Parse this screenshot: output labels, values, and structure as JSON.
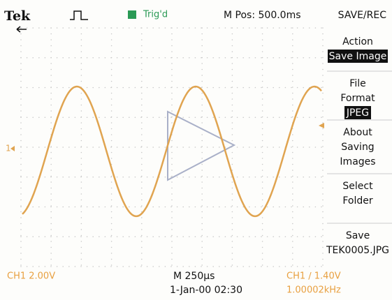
{
  "header": {
    "brand": "Tek",
    "trigger_status": "Trig'd",
    "position": "M Pos: 500.0ms",
    "menu_title": "SAVE/REC"
  },
  "screen": {
    "channel_marker": "1"
  },
  "menu": {
    "items": [
      {
        "lines": [
          "Action"
        ],
        "value": "Save Image"
      },
      {
        "lines": [
          "File",
          "Format"
        ],
        "value": "JPEG"
      },
      {
        "lines": [
          "About",
          "Saving",
          "Images"
        ]
      },
      {
        "lines": [
          "Select",
          "Folder"
        ]
      },
      {
        "lines": [
          "Save",
          "TEK0005.JPG"
        ]
      }
    ]
  },
  "footer": {
    "ch1_scale": "CH1 2.00V",
    "timebase": "M 250µs",
    "datetime": "1-Jan-00 02:30",
    "trigger": "CH1 ∕ 1.40V",
    "frequency": "1.00002kHz"
  }
}
